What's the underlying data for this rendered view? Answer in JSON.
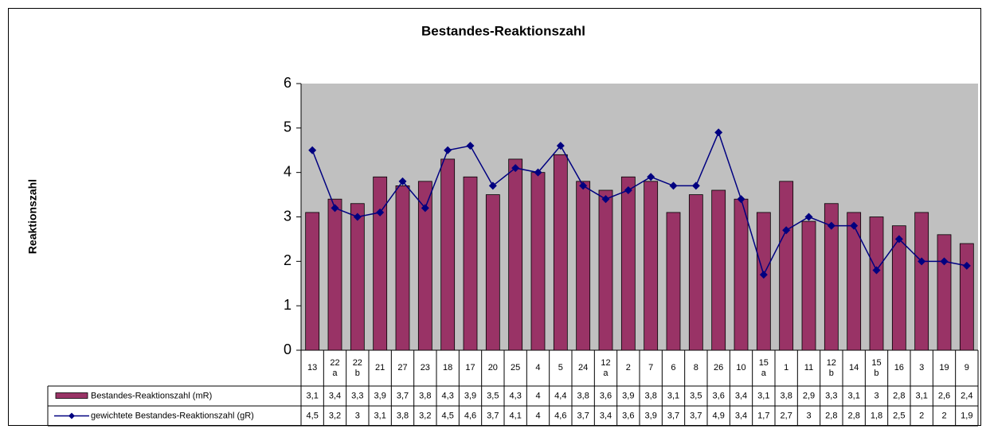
{
  "chart_data": {
    "type": "bar_line",
    "title": "Bestandes-Reaktionszahl",
    "y_label": "Reaktionszahl",
    "categories": [
      "13",
      "22\na",
      "22\nb",
      "21",
      "27",
      "23",
      "18",
      "17",
      "20",
      "25",
      "4",
      "5",
      "24",
      "12\na",
      "2",
      "7",
      "6",
      "8",
      "26",
      "10",
      "15\na",
      "1",
      "11",
      "12\nb",
      "14",
      "15\nb",
      "16",
      "3",
      "19",
      "9"
    ],
    "series": [
      {
        "name": "Bestandes-Reaktionszahl (mR)",
        "type": "bar",
        "color": "#993366",
        "values": [
          3.1,
          3.4,
          3.3,
          3.9,
          3.7,
          3.8,
          4.3,
          3.9,
          3.5,
          4.3,
          4,
          4.4,
          3.8,
          3.6,
          3.9,
          3.8,
          3.1,
          3.5,
          3.6,
          3.4,
          3.1,
          3.8,
          2.9,
          3.3,
          3.1,
          3,
          2.8,
          3.1,
          2.6,
          2.4
        ],
        "value_labels": [
          "3,1",
          "3,4",
          "3,3",
          "3,9",
          "3,7",
          "3,8",
          "4,3",
          "3,9",
          "3,5",
          "4,3",
          "4",
          "4,4",
          "3,8",
          "3,6",
          "3,9",
          "3,8",
          "3,1",
          "3,5",
          "3,6",
          "3,4",
          "3,1",
          "3,8",
          "2,9",
          "3,3",
          "3,1",
          "3",
          "2,8",
          "3,1",
          "2,6",
          "2,4"
        ]
      },
      {
        "name": "gewichtete Bestandes-Reaktionszahl (gR)",
        "type": "line",
        "color": "#000080",
        "values": [
          4.5,
          3.2,
          3,
          3.1,
          3.8,
          3.2,
          4.5,
          4.6,
          3.7,
          4.1,
          4,
          4.6,
          3.7,
          3.4,
          3.6,
          3.9,
          3.7,
          3.7,
          4.9,
          3.4,
          1.7,
          2.7,
          3,
          2.8,
          2.8,
          1.8,
          2.5,
          2,
          2,
          1.9
        ],
        "value_labels": [
          "4,5",
          "3,2",
          "3",
          "3,1",
          "3,8",
          "3,2",
          "4,5",
          "4,6",
          "3,7",
          "4,1",
          "4",
          "4,6",
          "3,7",
          "3,4",
          "3,6",
          "3,9",
          "3,7",
          "3,7",
          "4,9",
          "3,4",
          "1,7",
          "2,7",
          "3",
          "2,8",
          "2,8",
          "1,8",
          "2,5",
          "2",
          "2",
          "1,9"
        ]
      }
    ],
    "ylim": [
      0,
      6
    ],
    "yticks": [
      0,
      1,
      2,
      3,
      4,
      5,
      6
    ],
    "grid": false,
    "plot_background": "#c0c0c0"
  }
}
